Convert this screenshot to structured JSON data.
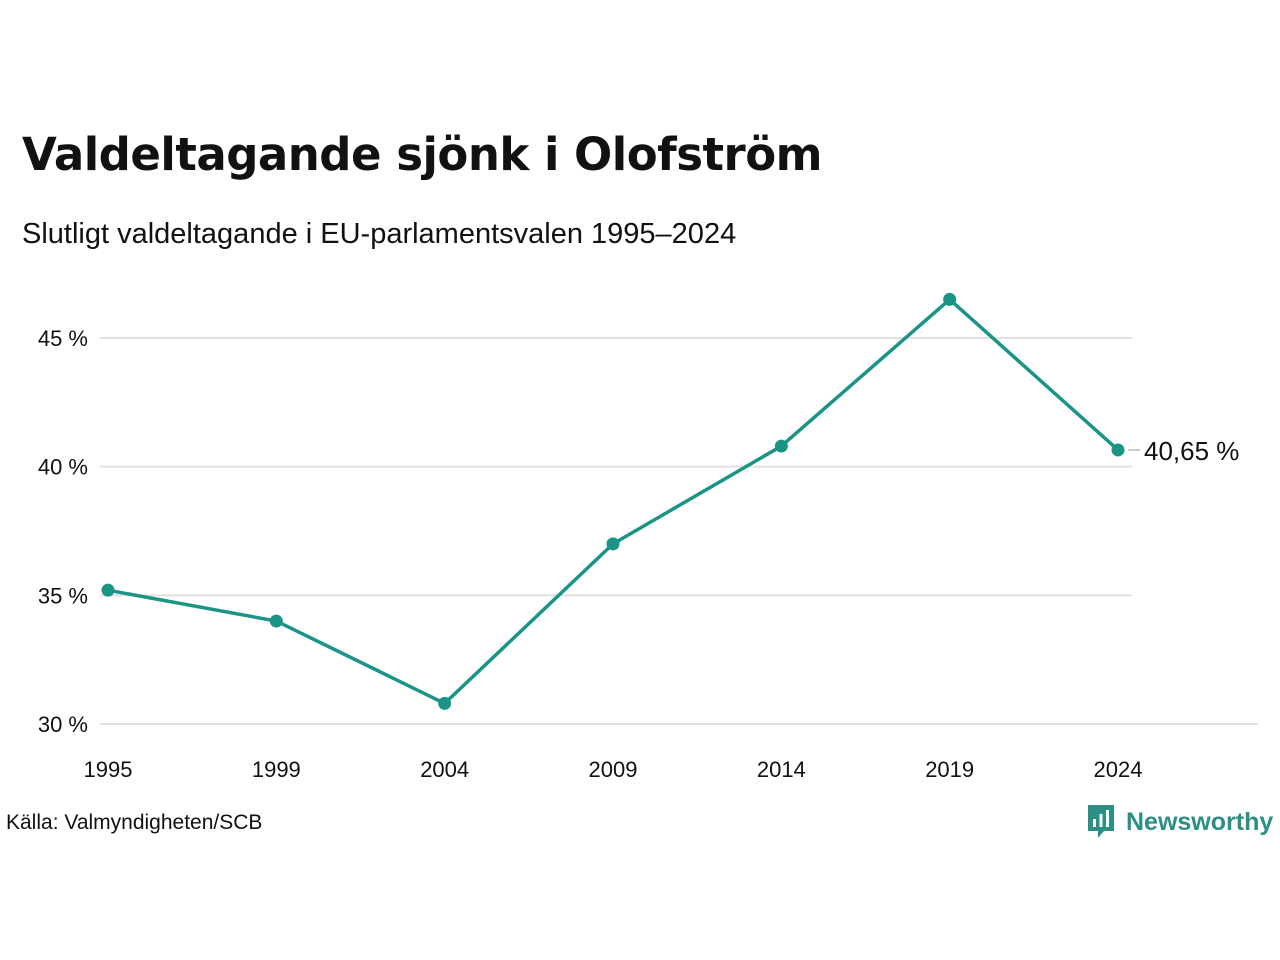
{
  "header": {
    "title": "Valdeltagande sjönk i Olofström",
    "subtitle": "Slutligt valdeltagande i EU-parlamentsvalen 1995–2024"
  },
  "footer": {
    "source": "Källa: Valmyndigheten/SCB",
    "brand": "Newsworthy"
  },
  "colors": {
    "line": "#1a9585",
    "grid": "#e1e1e1",
    "text": "#111111",
    "brand": "#2a8f85"
  },
  "icons": {
    "brand": "bar-chart-speech-bubble-icon"
  },
  "chart_data": {
    "type": "line",
    "title": "Valdeltagande sjönk i Olofström",
    "subtitle": "Slutligt valdeltagande i EU-parlamentsvalen 1995–2024",
    "xlabel": "",
    "ylabel": "",
    "categories": [
      "1995",
      "1999",
      "2004",
      "2009",
      "2014",
      "2019",
      "2024"
    ],
    "x": [
      1995,
      1999,
      2004,
      2009,
      2014,
      2019,
      2024
    ],
    "series": [
      {
        "values": [
          35.2,
          34.0,
          30.8,
          37.0,
          40.8,
          46.5,
          40.65
        ]
      }
    ],
    "ylim": [
      30,
      46.5
    ],
    "yticks": [
      30,
      35,
      40,
      45
    ],
    "ytick_labels": [
      "30 %",
      "35 %",
      "40 %",
      "45 %"
    ],
    "end_label": "40,65 %",
    "grid": true,
    "legend": "none"
  }
}
